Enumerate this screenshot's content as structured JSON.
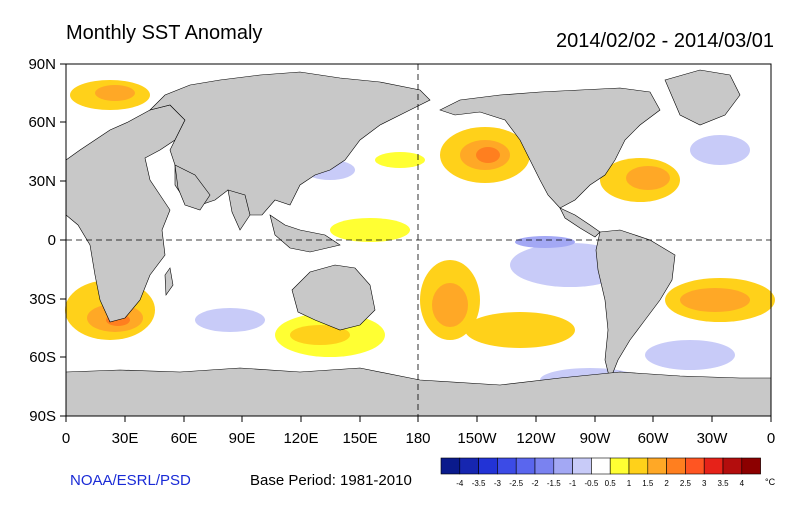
{
  "header": {
    "title": "Monthly SST Anomaly",
    "period": "2014/02/02 - 2014/03/01"
  },
  "axes": {
    "lat_labels": [
      "90N",
      "60N",
      "30N",
      "0",
      "30S",
      "60S",
      "90S"
    ],
    "lon_labels": [
      "0",
      "30E",
      "60E",
      "90E",
      "120E",
      "150E",
      "180",
      "150W",
      "120W",
      "90W",
      "60W",
      "30W",
      "0"
    ]
  },
  "footer": {
    "credit": "NOAA/ESRL/PSD",
    "base_period": "Base Period: 1981-2010"
  },
  "colorbar": {
    "unit": "°C",
    "ticks": [
      "-4",
      "-3.5",
      "-3",
      "-2.5",
      "-2",
      "-1.5",
      "-1",
      "-0.5",
      "0.5",
      "1",
      "1.5",
      "2",
      "2.5",
      "3",
      "3.5",
      "4"
    ],
    "colors": [
      "#0a1a8c",
      "#1626b0",
      "#2233d6",
      "#3c4be6",
      "#5a66ee",
      "#7a82f0",
      "#a3a8f4",
      "#c8cbf8",
      "#ffffff",
      "#ffff33",
      "#ffd11a",
      "#ffa826",
      "#ff7f1f",
      "#ff5522",
      "#e62219",
      "#b30d0d",
      "#8c0000"
    ]
  },
  "colors": {
    "land": "#c8c8c8",
    "warm_anomaly": "#ffd11a",
    "cool_anomaly": "#a3a8f4"
  }
}
